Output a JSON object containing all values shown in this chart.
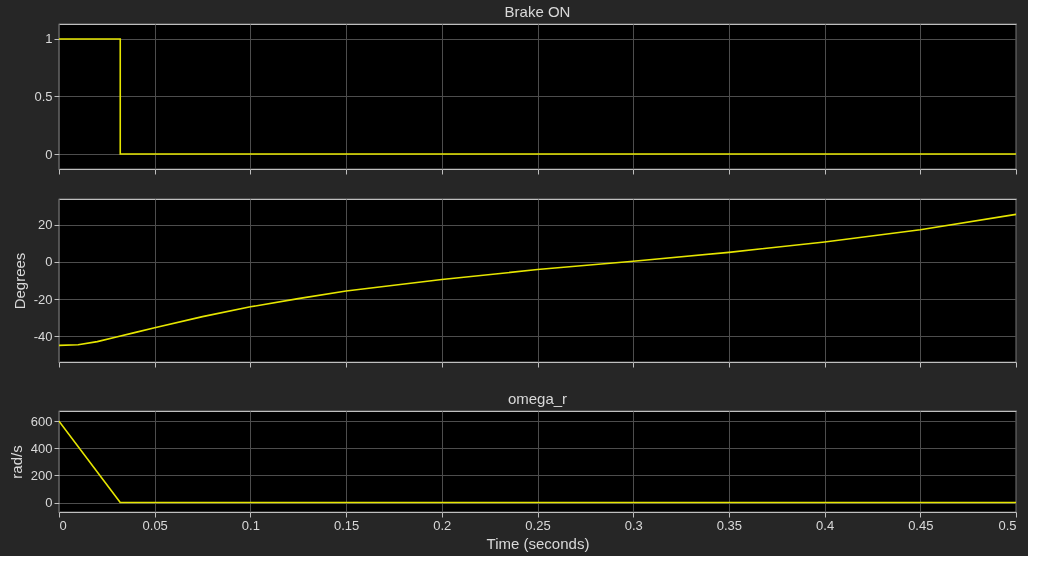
{
  "chart_data": [
    {
      "type": "step",
      "title": "Brake ON",
      "x": [
        0,
        0.032,
        0.5
      ],
      "series": [
        {
          "color": "#e6e600",
          "values": [
            1,
            0,
            0
          ]
        }
      ],
      "xlim": [
        0,
        0.5
      ],
      "xticks": [
        0,
        0.05,
        0.1,
        0.15,
        0.2,
        0.25,
        0.3,
        0.35,
        0.4,
        0.45,
        0.5
      ],
      "ylim": [
        -0.13,
        1.13
      ],
      "yticks": [
        0,
        0.5,
        1
      ],
      "grid": true,
      "tick_labels": "y"
    },
    {
      "type": "line",
      "ylabel": "Degrees",
      "x": [
        0,
        0.01,
        0.02,
        0.03,
        0.04,
        0.05,
        0.075,
        0.1,
        0.125,
        0.15,
        0.2,
        0.25,
        0.3,
        0.35,
        0.4,
        0.45,
        0.5
      ],
      "series": [
        {
          "color": "#e6e600",
          "values": [
            -45,
            -44.7,
            -43,
            -40.5,
            -38,
            -35.5,
            -29.5,
            -24.2,
            -19.8,
            -15.7,
            -9.5,
            -4.1,
            0.4,
            5.2,
            10.8,
            17.4,
            25.7
          ]
        }
      ],
      "xlim": [
        0,
        0.5
      ],
      "xticks": [
        0,
        0.05,
        0.1,
        0.15,
        0.2,
        0.25,
        0.3,
        0.35,
        0.4,
        0.45,
        0.5
      ],
      "ylim": [
        -54,
        34
      ],
      "yticks": [
        -40,
        -20,
        0,
        20
      ],
      "grid": true,
      "tick_labels": "y"
    },
    {
      "type": "line",
      "title": "omega_r",
      "ylabel": "rad/s",
      "xlabel": "Time (seconds)",
      "x": [
        0,
        0.032,
        0.5
      ],
      "series": [
        {
          "color": "#e6e600",
          "values": [
            600,
            0,
            0
          ]
        }
      ],
      "xlim": [
        0,
        0.5
      ],
      "xticks": [
        0,
        0.05,
        0.1,
        0.15,
        0.2,
        0.25,
        0.3,
        0.35,
        0.4,
        0.45,
        0.5
      ],
      "ylim": [
        -70,
        675
      ],
      "yticks": [
        0,
        200,
        400,
        600
      ],
      "grid": true
    }
  ]
}
